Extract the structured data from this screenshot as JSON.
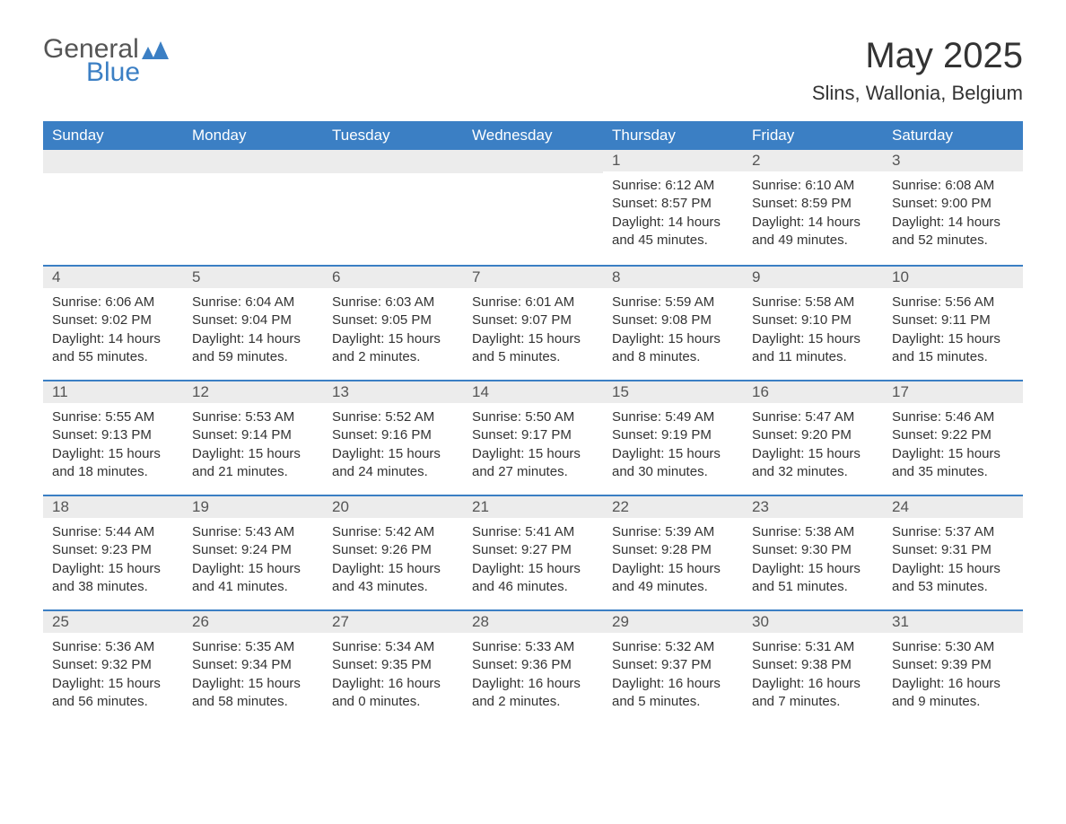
{
  "logo": {
    "general": "General",
    "blue": "Blue"
  },
  "title": "May 2025",
  "location": "Slins, Wallonia, Belgium",
  "colors": {
    "header_bg": "#3b7fc4",
    "header_text": "#ffffff",
    "daynum_bg": "#ececec",
    "daynum_border": "#3b7fc4",
    "body_bg": "#ffffff",
    "text": "#333333",
    "logo_gray": "#555555",
    "logo_blue": "#3b7fc4"
  },
  "typography": {
    "title_fontsize": 40,
    "location_fontsize": 22,
    "dayheader_fontsize": 17,
    "body_fontsize": 15,
    "font_family": "Arial"
  },
  "day_headers": [
    "Sunday",
    "Monday",
    "Tuesday",
    "Wednesday",
    "Thursday",
    "Friday",
    "Saturday"
  ],
  "weeks": [
    [
      null,
      null,
      null,
      null,
      {
        "num": "1",
        "sunrise": "Sunrise: 6:12 AM",
        "sunset": "Sunset: 8:57 PM",
        "daylight": "Daylight: 14 hours and 45 minutes."
      },
      {
        "num": "2",
        "sunrise": "Sunrise: 6:10 AM",
        "sunset": "Sunset: 8:59 PM",
        "daylight": "Daylight: 14 hours and 49 minutes."
      },
      {
        "num": "3",
        "sunrise": "Sunrise: 6:08 AM",
        "sunset": "Sunset: 9:00 PM",
        "daylight": "Daylight: 14 hours and 52 minutes."
      }
    ],
    [
      {
        "num": "4",
        "sunrise": "Sunrise: 6:06 AM",
        "sunset": "Sunset: 9:02 PM",
        "daylight": "Daylight: 14 hours and 55 minutes."
      },
      {
        "num": "5",
        "sunrise": "Sunrise: 6:04 AM",
        "sunset": "Sunset: 9:04 PM",
        "daylight": "Daylight: 14 hours and 59 minutes."
      },
      {
        "num": "6",
        "sunrise": "Sunrise: 6:03 AM",
        "sunset": "Sunset: 9:05 PM",
        "daylight": "Daylight: 15 hours and 2 minutes."
      },
      {
        "num": "7",
        "sunrise": "Sunrise: 6:01 AM",
        "sunset": "Sunset: 9:07 PM",
        "daylight": "Daylight: 15 hours and 5 minutes."
      },
      {
        "num": "8",
        "sunrise": "Sunrise: 5:59 AM",
        "sunset": "Sunset: 9:08 PM",
        "daylight": "Daylight: 15 hours and 8 minutes."
      },
      {
        "num": "9",
        "sunrise": "Sunrise: 5:58 AM",
        "sunset": "Sunset: 9:10 PM",
        "daylight": "Daylight: 15 hours and 11 minutes."
      },
      {
        "num": "10",
        "sunrise": "Sunrise: 5:56 AM",
        "sunset": "Sunset: 9:11 PM",
        "daylight": "Daylight: 15 hours and 15 minutes."
      }
    ],
    [
      {
        "num": "11",
        "sunrise": "Sunrise: 5:55 AM",
        "sunset": "Sunset: 9:13 PM",
        "daylight": "Daylight: 15 hours and 18 minutes."
      },
      {
        "num": "12",
        "sunrise": "Sunrise: 5:53 AM",
        "sunset": "Sunset: 9:14 PM",
        "daylight": "Daylight: 15 hours and 21 minutes."
      },
      {
        "num": "13",
        "sunrise": "Sunrise: 5:52 AM",
        "sunset": "Sunset: 9:16 PM",
        "daylight": "Daylight: 15 hours and 24 minutes."
      },
      {
        "num": "14",
        "sunrise": "Sunrise: 5:50 AM",
        "sunset": "Sunset: 9:17 PM",
        "daylight": "Daylight: 15 hours and 27 minutes."
      },
      {
        "num": "15",
        "sunrise": "Sunrise: 5:49 AM",
        "sunset": "Sunset: 9:19 PM",
        "daylight": "Daylight: 15 hours and 30 minutes."
      },
      {
        "num": "16",
        "sunrise": "Sunrise: 5:47 AM",
        "sunset": "Sunset: 9:20 PM",
        "daylight": "Daylight: 15 hours and 32 minutes."
      },
      {
        "num": "17",
        "sunrise": "Sunrise: 5:46 AM",
        "sunset": "Sunset: 9:22 PM",
        "daylight": "Daylight: 15 hours and 35 minutes."
      }
    ],
    [
      {
        "num": "18",
        "sunrise": "Sunrise: 5:44 AM",
        "sunset": "Sunset: 9:23 PM",
        "daylight": "Daylight: 15 hours and 38 minutes."
      },
      {
        "num": "19",
        "sunrise": "Sunrise: 5:43 AM",
        "sunset": "Sunset: 9:24 PM",
        "daylight": "Daylight: 15 hours and 41 minutes."
      },
      {
        "num": "20",
        "sunrise": "Sunrise: 5:42 AM",
        "sunset": "Sunset: 9:26 PM",
        "daylight": "Daylight: 15 hours and 43 minutes."
      },
      {
        "num": "21",
        "sunrise": "Sunrise: 5:41 AM",
        "sunset": "Sunset: 9:27 PM",
        "daylight": "Daylight: 15 hours and 46 minutes."
      },
      {
        "num": "22",
        "sunrise": "Sunrise: 5:39 AM",
        "sunset": "Sunset: 9:28 PM",
        "daylight": "Daylight: 15 hours and 49 minutes."
      },
      {
        "num": "23",
        "sunrise": "Sunrise: 5:38 AM",
        "sunset": "Sunset: 9:30 PM",
        "daylight": "Daylight: 15 hours and 51 minutes."
      },
      {
        "num": "24",
        "sunrise": "Sunrise: 5:37 AM",
        "sunset": "Sunset: 9:31 PM",
        "daylight": "Daylight: 15 hours and 53 minutes."
      }
    ],
    [
      {
        "num": "25",
        "sunrise": "Sunrise: 5:36 AM",
        "sunset": "Sunset: 9:32 PM",
        "daylight": "Daylight: 15 hours and 56 minutes."
      },
      {
        "num": "26",
        "sunrise": "Sunrise: 5:35 AM",
        "sunset": "Sunset: 9:34 PM",
        "daylight": "Daylight: 15 hours and 58 minutes."
      },
      {
        "num": "27",
        "sunrise": "Sunrise: 5:34 AM",
        "sunset": "Sunset: 9:35 PM",
        "daylight": "Daylight: 16 hours and 0 minutes."
      },
      {
        "num": "28",
        "sunrise": "Sunrise: 5:33 AM",
        "sunset": "Sunset: 9:36 PM",
        "daylight": "Daylight: 16 hours and 2 minutes."
      },
      {
        "num": "29",
        "sunrise": "Sunrise: 5:32 AM",
        "sunset": "Sunset: 9:37 PM",
        "daylight": "Daylight: 16 hours and 5 minutes."
      },
      {
        "num": "30",
        "sunrise": "Sunrise: 5:31 AM",
        "sunset": "Sunset: 9:38 PM",
        "daylight": "Daylight: 16 hours and 7 minutes."
      },
      {
        "num": "31",
        "sunrise": "Sunrise: 5:30 AM",
        "sunset": "Sunset: 9:39 PM",
        "daylight": "Daylight: 16 hours and 9 minutes."
      }
    ]
  ]
}
